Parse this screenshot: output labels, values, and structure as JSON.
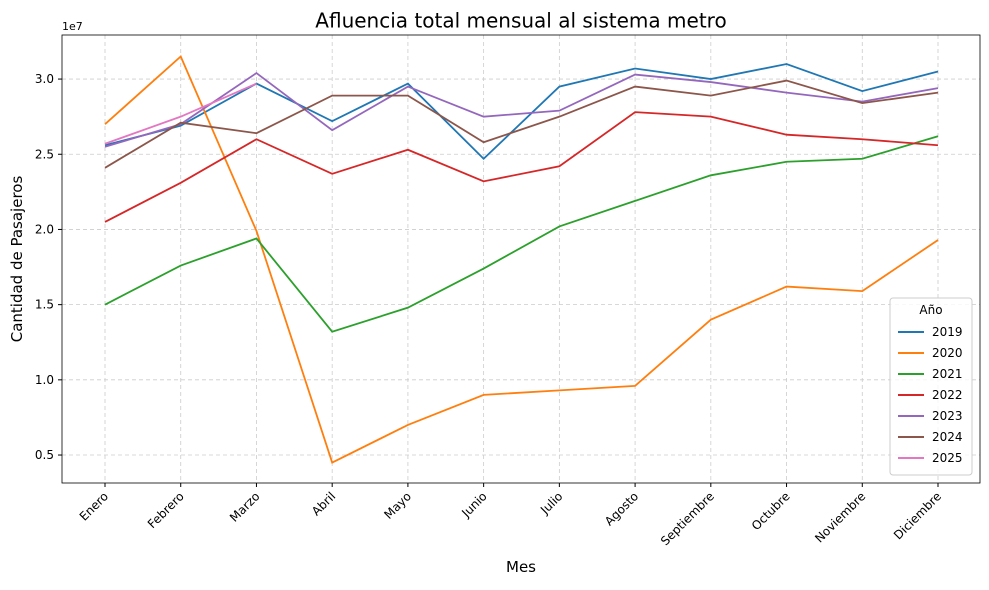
{
  "chart_data": {
    "type": "line",
    "title": "Afluencia total mensual al sistema metro",
    "xlabel": "Mes",
    "ylabel": "Cantidad de Pasajeros",
    "axis_offset": "1e7",
    "categories": [
      "Enero",
      "Febrero",
      "Marzo",
      "Abril",
      "Mayo",
      "Junio",
      "Julio",
      "Agosto",
      "Septiembre",
      "Octubre",
      "Noviembre",
      "Diciembre"
    ],
    "series": [
      {
        "name": "2019",
        "color": "#1f77b4",
        "values": [
          2.56,
          2.69,
          2.97,
          2.72,
          2.97,
          2.47,
          2.95,
          3.07,
          3.0,
          3.1,
          2.92,
          3.05
        ]
      },
      {
        "name": "2020",
        "color": "#ff7f0e",
        "values": [
          2.7,
          3.15,
          1.99,
          0.45,
          0.7,
          0.9,
          0.93,
          0.96,
          1.4,
          1.62,
          1.59,
          1.93
        ]
      },
      {
        "name": "2021",
        "color": "#2ca02c",
        "values": [
          1.5,
          1.76,
          1.94,
          1.32,
          1.48,
          1.74,
          2.02,
          2.19,
          2.36,
          2.45,
          2.47,
          2.62
        ]
      },
      {
        "name": "2022",
        "color": "#d62728",
        "values": [
          2.05,
          2.31,
          2.6,
          2.37,
          2.53,
          2.32,
          2.42,
          2.78,
          2.75,
          2.63,
          2.6,
          2.56
        ]
      },
      {
        "name": "2023",
        "color": "#9467bd",
        "values": [
          2.55,
          2.7,
          3.04,
          2.66,
          2.95,
          2.75,
          2.79,
          3.03,
          2.98,
          2.91,
          2.85,
          2.94
        ]
      },
      {
        "name": "2024",
        "color": "#8c564b",
        "values": [
          2.41,
          2.71,
          2.64,
          2.89,
          2.89,
          2.58,
          2.75,
          2.95,
          2.89,
          2.99,
          2.84,
          2.91
        ]
      },
      {
        "name": "2025",
        "color": "#e377c2",
        "values": [
          2.57,
          2.75,
          2.97,
          null,
          null,
          null,
          null,
          null,
          null,
          null,
          null,
          null
        ]
      }
    ],
    "ylim": [
      0.314,
      3.293
    ],
    "yticks": [
      0.5,
      {
        "value": 1,
        "label": "1.0"
      },
      1.5,
      {
        "value": 2,
        "label": "2.0"
      },
      2.5,
      {
        "value": 3,
        "label": "3.0"
      }
    ],
    "grid": true,
    "legend": "lower right",
    "legend_title": "Año"
  }
}
